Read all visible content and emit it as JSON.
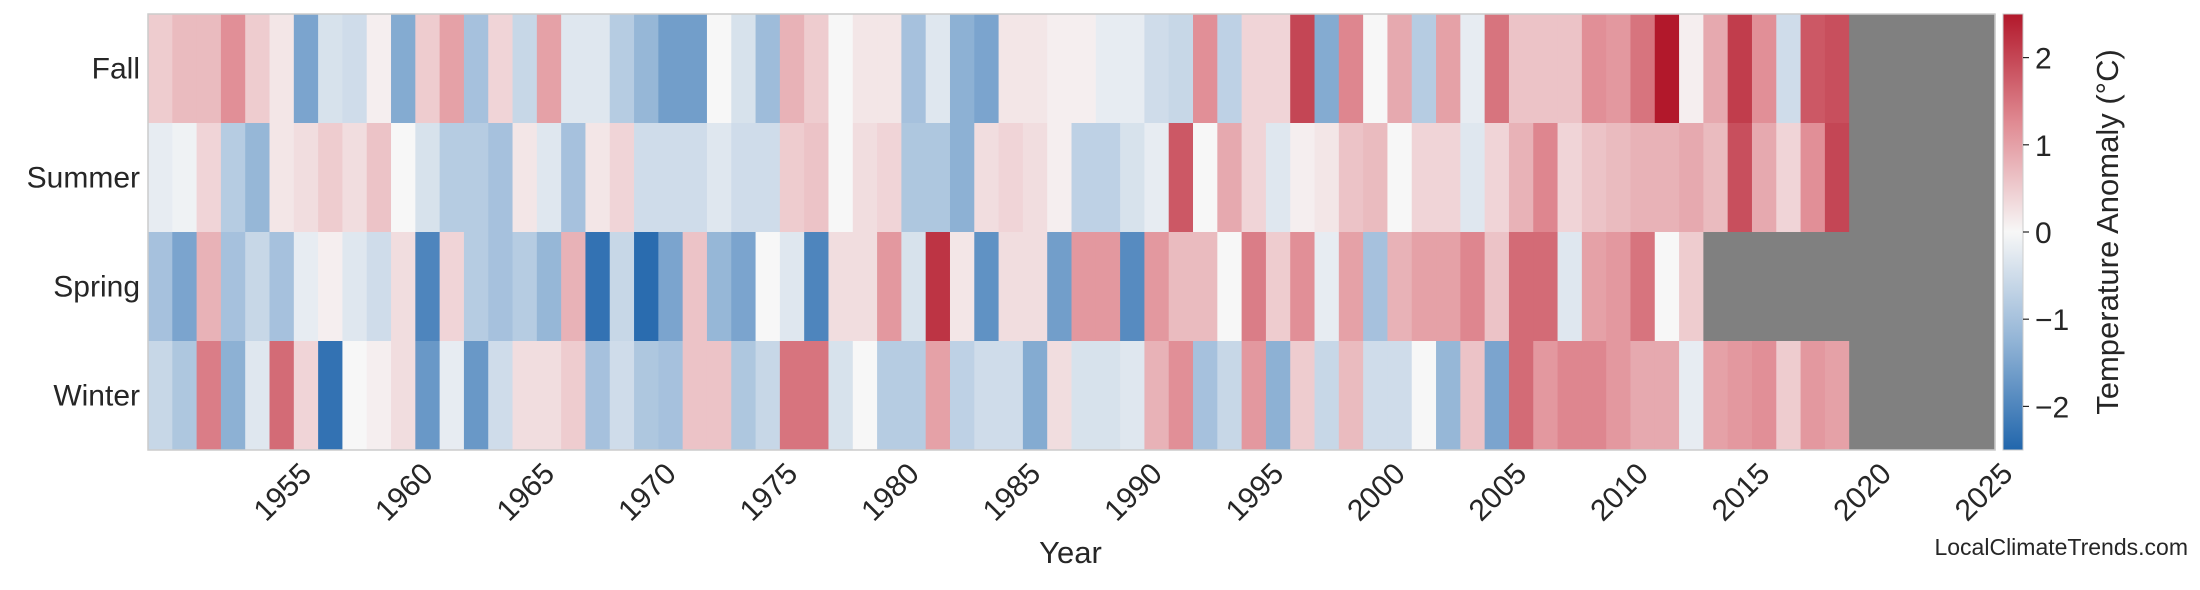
{
  "chart_data": {
    "type": "heatmap",
    "title": "",
    "xlabel": "Year",
    "colorbar_label": "Temperature Anomaly (°C)",
    "watermark": "LocalClimateTrends.com",
    "seasons": [
      "Fall",
      "Summer",
      "Spring",
      "Winter"
    ],
    "x_start": 1950,
    "x_end": 2025,
    "x_ticks": [
      1955,
      1960,
      1965,
      1970,
      1975,
      1980,
      1985,
      1990,
      1995,
      2000,
      2005,
      2010,
      2015,
      2020,
      2025
    ],
    "colorbar_ticks": [
      -2,
      -1,
      0,
      1,
      2
    ],
    "value_range": [
      -2.5,
      2.5
    ],
    "missing_color": "#808080",
    "colormap": [
      {
        "v": -2.5,
        "color": "#2166ac"
      },
      {
        "v": -1.25,
        "color": "#92b4d6"
      },
      {
        "v": 0,
        "color": "#f7f7f7"
      },
      {
        "v": 1.25,
        "color": "#e08b93"
      },
      {
        "v": 2.5,
        "color": "#b2182b"
      }
    ],
    "values": {
      "Fall": [
        0.5,
        0.7,
        0.7,
        1.2,
        0.5,
        0.2,
        -1.5,
        -0.4,
        -0.5,
        0.1,
        -1.4,
        0.5,
        1.0,
        -1.0,
        0.4,
        -0.6,
        1.0,
        -0.3,
        -0.3,
        -0.8,
        -1.2,
        -1.6,
        -1.6,
        0.0,
        -0.4,
        -1.1,
        0.8,
        0.5,
        0.0,
        0.2,
        0.2,
        -1.0,
        -0.3,
        -1.3,
        -1.5,
        0.2,
        0.2,
        0.1,
        0.1,
        -0.2,
        -0.2,
        -0.5,
        -0.6,
        1.2,
        -0.7,
        0.4,
        0.4,
        2.0,
        -1.4,
        1.3,
        0.0,
        0.9,
        -0.8,
        1.0,
        -0.2,
        1.5,
        0.6,
        0.6,
        0.6,
        1.2,
        1.1,
        1.5,
        2.5,
        0.1,
        0.9,
        2.1,
        1.2,
        -0.5,
        1.8,
        1.9,
        null
      ],
      "Summer": [
        -0.2,
        -0.1,
        0.4,
        -0.8,
        -1.2,
        0.2,
        0.3,
        0.5,
        0.3,
        0.6,
        0.0,
        -0.4,
        -0.8,
        -0.8,
        -1.0,
        0.2,
        -0.3,
        -1.0,
        0.2,
        0.4,
        -0.5,
        -0.5,
        -0.5,
        -0.3,
        -0.5,
        -0.5,
        0.5,
        0.6,
        0.0,
        0.3,
        0.4,
        -0.9,
        -0.9,
        -1.3,
        0.3,
        0.4,
        0.3,
        0.1,
        -0.7,
        -0.7,
        -0.4,
        -0.2,
        1.8,
        0.0,
        0.9,
        0.4,
        -0.3,
        0.1,
        0.2,
        0.6,
        0.7,
        0.0,
        0.4,
        0.4,
        -0.3,
        0.4,
        0.8,
        1.3,
        0.4,
        0.6,
        0.7,
        0.8,
        0.8,
        0.9,
        0.7,
        1.9,
        0.9,
        0.4,
        1.2,
        2.0,
        null
      ],
      "Spring": [
        -1.0,
        -1.5,
        0.8,
        -1.0,
        -0.6,
        -1.0,
        -0.2,
        0.1,
        -0.3,
        -0.5,
        0.3,
        -2.0,
        0.4,
        -0.8,
        -1.0,
        -0.8,
        -1.2,
        0.8,
        -2.3,
        -0.6,
        -2.4,
        -1.5,
        0.6,
        -1.2,
        -1.5,
        0.0,
        -0.3,
        -2.0,
        0.3,
        0.3,
        1.1,
        -0.4,
        2.2,
        0.2,
        -1.8,
        0.3,
        0.3,
        -1.6,
        1.1,
        1.1,
        -1.9,
        1.1,
        0.7,
        0.7,
        0.0,
        1.4,
        0.5,
        1.2,
        -0.2,
        1.0,
        -1.0,
        0.8,
        1.0,
        1.0,
        1.3,
        0.6,
        1.6,
        1.6,
        -0.3,
        1.0,
        1.1,
        1.5,
        0.0,
        0.5
      ],
      "Winter": [
        -0.6,
        -0.9,
        1.4,
        -1.3,
        -0.3,
        1.6,
        0.4,
        -2.3,
        0.0,
        0.1,
        0.3,
        -1.7,
        -0.2,
        -1.7,
        -0.5,
        0.3,
        0.3,
        0.5,
        -1.0,
        -0.5,
        -0.9,
        -1.0,
        0.6,
        0.6,
        -0.9,
        -0.6,
        1.5,
        1.5,
        -0.4,
        0.0,
        -0.8,
        -0.8,
        1.0,
        -0.7,
        -0.5,
        -0.5,
        -1.4,
        0.3,
        -0.4,
        -0.4,
        -0.3,
        0.8,
        1.2,
        -1.0,
        -0.6,
        1.1,
        -1.3,
        0.5,
        -0.6,
        0.7,
        -0.5,
        -0.5,
        0.0,
        -1.2,
        0.6,
        -1.5,
        1.6,
        1.1,
        1.3,
        1.3,
        1.1,
        0.9,
        0.9,
        -0.2,
        1.0,
        1.1,
        1.2,
        0.5,
        1.1,
        1.0
      ]
    }
  }
}
